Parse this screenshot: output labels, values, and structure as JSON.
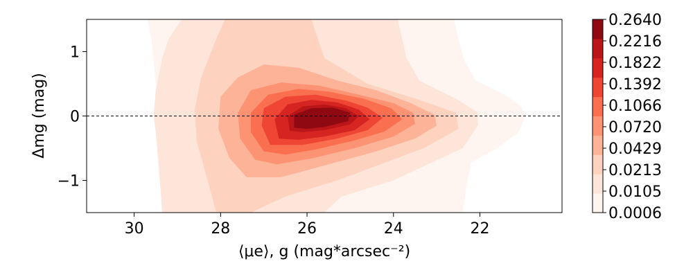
{
  "chart_data": {
    "type": "contour",
    "xlabel": "⟨μe⟩, g (mag*arcsec⁻²)",
    "ylabel": "Δmg (mag)",
    "xlim": [
      31.1,
      20.1
    ],
    "ylim": [
      -1.5,
      1.5
    ],
    "x_ticks": [
      30,
      28,
      26,
      24,
      22
    ],
    "y_ticks": [
      1,
      0,
      -1
    ],
    "x_tick_labels": [
      "30",
      "28",
      "26",
      "24",
      "22"
    ],
    "y_tick_labels": [
      "1",
      "0",
      "−1"
    ],
    "reference_line": {
      "y": 0,
      "style": "dashed"
    },
    "grid": false,
    "colorbar": {
      "position": "right",
      "levels": [
        0.0006,
        0.0105,
        0.0213,
        0.0429,
        0.072,
        0.1066,
        0.1392,
        0.1822,
        0.2216,
        0.264
      ],
      "tick_labels": [
        "0.0006",
        "0.0105",
        "0.0213",
        "0.0429",
        "0.0720",
        "0.1066",
        "0.1392",
        "0.1822",
        "0.2216",
        "0.2640"
      ],
      "colors": [
        "#fff5f0",
        "#fee5d9",
        "#fdd2bf",
        "#fcb398",
        "#fc9474",
        "#f96f50",
        "#ef4535",
        "#d62421",
        "#ba1619",
        "#8e0912"
      ]
    },
    "contours": [
      {
        "level": 0.0006,
        "outline": [
          [
            29.7,
            1.5
          ],
          [
            29.6,
            1.2
          ],
          [
            29.55,
            0.85
          ],
          [
            29.5,
            0.5
          ],
          [
            29.5,
            0.1
          ],
          [
            29.5,
            -0.3
          ],
          [
            29.45,
            -0.7
          ],
          [
            29.4,
            -1.1
          ],
          [
            29.2,
            -1.5
          ],
          [
            22.4,
            -1.5
          ],
          [
            22.3,
            -1.05
          ],
          [
            22.2,
            -0.72
          ],
          [
            21.6,
            -0.5
          ],
          [
            21.1,
            -0.25
          ],
          [
            20.95,
            0
          ],
          [
            21.05,
            0.15
          ],
          [
            21.4,
            0.32
          ],
          [
            22.1,
            0.55
          ],
          [
            22.35,
            0.85
          ],
          [
            22.5,
            1.2
          ],
          [
            22.6,
            1.5
          ]
        ]
      },
      {
        "level": 0.0105,
        "outline": [
          [
            29.35,
            -1.5
          ],
          [
            29.4,
            -1.05
          ],
          [
            29.45,
            -0.6
          ],
          [
            29.5,
            -0.25
          ],
          [
            29.55,
            0
          ],
          [
            29.5,
            0.4
          ],
          [
            29.35,
            0.9
          ],
          [
            29.2,
            1.2
          ],
          [
            28.9,
            1.5
          ],
          [
            23.9,
            1.5
          ],
          [
            23.7,
            0.9
          ],
          [
            23.4,
            0.55
          ],
          [
            22.5,
            0.25
          ],
          [
            22.05,
            0.05
          ],
          [
            22.05,
            -0.15
          ],
          [
            22.4,
            -0.5
          ],
          [
            23.2,
            -0.75
          ],
          [
            24.0,
            -1.0
          ],
          [
            25.2,
            -1.25
          ],
          [
            25.6,
            -1.5
          ]
        ]
      },
      {
        "level": 0.0213,
        "outline": [
          [
            28.1,
            -1.5
          ],
          [
            28.3,
            -1.0
          ],
          [
            28.55,
            -0.4
          ],
          [
            28.6,
            0.1
          ],
          [
            28.45,
            0.6
          ],
          [
            28.1,
            1.2
          ],
          [
            27.9,
            1.5
          ],
          [
            25.9,
            1.5
          ],
          [
            25.6,
            0.9
          ],
          [
            24.6,
            0.5
          ],
          [
            23.4,
            0.25
          ],
          [
            22.55,
            0.05
          ],
          [
            22.5,
            -0.2
          ],
          [
            23.3,
            -0.5
          ],
          [
            24.3,
            -0.75
          ],
          [
            25.3,
            -1.0
          ],
          [
            26.5,
            -1.25
          ],
          [
            27.3,
            -1.5
          ]
        ]
      },
      {
        "level": 0.0429,
        "outline": [
          [
            27.4,
            -0.95
          ],
          [
            27.8,
            -0.65
          ],
          [
            28.05,
            -0.2
          ],
          [
            28.0,
            0.3
          ],
          [
            27.6,
            0.6
          ],
          [
            27.0,
            0.8
          ],
          [
            26.2,
            0.75
          ],
          [
            25.3,
            0.55
          ],
          [
            24.4,
            0.4
          ],
          [
            23.6,
            0.2
          ],
          [
            23.05,
            0.02
          ],
          [
            23.0,
            -0.15
          ],
          [
            23.5,
            -0.35
          ],
          [
            24.4,
            -0.55
          ],
          [
            25.5,
            -0.75
          ],
          [
            26.6,
            -0.95
          ]
        ]
      },
      {
        "level": 0.072,
        "outline": [
          [
            27.2,
            -0.68
          ],
          [
            27.55,
            -0.35
          ],
          [
            27.6,
            0.05
          ],
          [
            27.3,
            0.4
          ],
          [
            26.6,
            0.52
          ],
          [
            25.7,
            0.47
          ],
          [
            24.8,
            0.33
          ],
          [
            24.0,
            0.2
          ],
          [
            23.55,
            0.05
          ],
          [
            23.5,
            -0.12
          ],
          [
            24.0,
            -0.32
          ],
          [
            24.9,
            -0.5
          ],
          [
            25.9,
            -0.66
          ],
          [
            26.7,
            -0.75
          ]
        ]
      },
      {
        "level": 0.1066,
        "outline": [
          [
            27.0,
            -0.55
          ],
          [
            27.3,
            -0.25
          ],
          [
            27.3,
            0.05
          ],
          [
            26.9,
            0.33
          ],
          [
            26.2,
            0.42
          ],
          [
            25.5,
            0.38
          ],
          [
            24.7,
            0.27
          ],
          [
            24.05,
            0.12
          ],
          [
            23.8,
            -0.05
          ],
          [
            24.2,
            -0.24
          ],
          [
            24.9,
            -0.38
          ],
          [
            25.8,
            -0.52
          ],
          [
            26.5,
            -0.6
          ]
        ]
      },
      {
        "level": 0.1392,
        "outline": [
          [
            26.85,
            -0.45
          ],
          [
            27.05,
            -0.15
          ],
          [
            27.0,
            0.12
          ],
          [
            26.5,
            0.3
          ],
          [
            25.8,
            0.33
          ],
          [
            25.1,
            0.24
          ],
          [
            24.6,
            0.13
          ],
          [
            24.25,
            -0.03
          ],
          [
            24.6,
            -0.22
          ],
          [
            25.3,
            -0.35
          ],
          [
            26.1,
            -0.45
          ]
        ]
      },
      {
        "level": 0.1822,
        "outline": [
          [
            26.65,
            -0.35
          ],
          [
            26.75,
            -0.05
          ],
          [
            26.45,
            0.18
          ],
          [
            25.9,
            0.25
          ],
          [
            25.3,
            0.21
          ],
          [
            24.8,
            0.1
          ],
          [
            24.55,
            -0.05
          ],
          [
            24.9,
            -0.22
          ],
          [
            25.6,
            -0.32
          ],
          [
            26.2,
            -0.37
          ]
        ]
      },
      {
        "level": 0.2216,
        "outline": [
          [
            26.4,
            -0.23
          ],
          [
            26.45,
            0.0
          ],
          [
            26.1,
            0.15
          ],
          [
            25.6,
            0.18
          ],
          [
            25.1,
            0.12
          ],
          [
            24.8,
            0.0
          ],
          [
            25.0,
            -0.13
          ],
          [
            25.6,
            -0.22
          ],
          [
            26.1,
            -0.25
          ]
        ]
      },
      {
        "level": 0.264,
        "outline": [
          [
            26.3,
            -0.18
          ],
          [
            26.3,
            0.02
          ],
          [
            25.9,
            0.12
          ],
          [
            25.4,
            0.13
          ],
          [
            25.0,
            0.05
          ],
          [
            25.05,
            -0.08
          ],
          [
            25.6,
            -0.17
          ],
          [
            26.0,
            -0.2
          ]
        ]
      }
    ]
  }
}
